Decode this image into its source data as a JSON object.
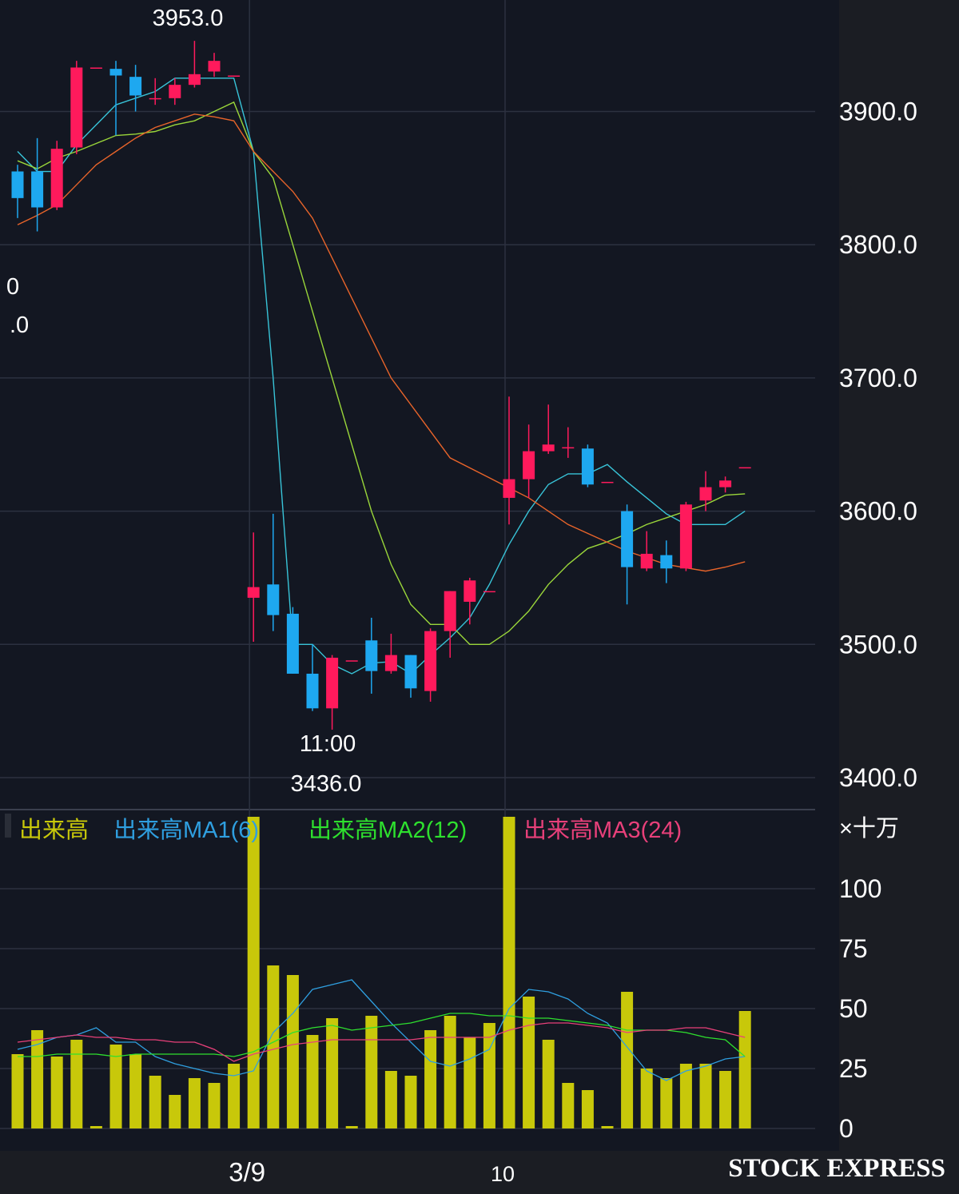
{
  "chart_data": {
    "type": "candlestick",
    "colors": {
      "background": "#1b1d23",
      "plot_area": "#131722",
      "grid": "#2c3140",
      "up": "#ff1a5c",
      "down": "#1ea8f0",
      "volume": "#c8c80a",
      "ma_short": "#38c4d8",
      "ma_mid": "#9ad63a",
      "ma_long": "#e8642a",
      "vol_ma1": "#2f9fe0",
      "vol_ma2": "#2ee02e",
      "vol_ma3": "#e8407a"
    },
    "price_axis": {
      "ylim": [
        3373,
        3986
      ],
      "ticks": [
        "3400.0",
        "3500.0",
        "3600.0",
        "3700.0",
        "3800.0",
        "3900.0"
      ]
    },
    "volume_axis": {
      "ylim": [
        0,
        140
      ],
      "unit": "×十万",
      "ticks": [
        "0",
        "25",
        "50",
        "75",
        "100"
      ]
    },
    "x_labels": [
      {
        "label": "3/9",
        "index": 12
      },
      {
        "label": "10",
        "index": 25
      }
    ],
    "annotations": {
      "high": {
        "value": "3953.0",
        "index": 9
      },
      "low_time": {
        "value": "11:00",
        "index": 16
      },
      "low": {
        "value": "3436.0",
        "index": 16
      },
      "clipped_1": "0",
      "clipped_2": ".0"
    },
    "candles": [
      {
        "o": 3855,
        "h": 3860,
        "l": 3820,
        "c": 3835
      },
      {
        "o": 3855,
        "h": 3880,
        "l": 3810,
        "c": 3828
      },
      {
        "o": 3828,
        "h": 3878,
        "l": 3826,
        "c": 3872
      },
      {
        "o": 3873,
        "h": 3938,
        "l": 3868,
        "c": 3933
      },
      {
        "o": 3933,
        "h": 3933,
        "l": 3933,
        "c": 3933
      },
      {
        "o": 3932,
        "h": 3938,
        "l": 3882,
        "c": 3927
      },
      {
        "o": 3926,
        "h": 3935,
        "l": 3900,
        "c": 3912
      },
      {
        "o": 3910,
        "h": 3925,
        "l": 3905,
        "c": 3910
      },
      {
        "o": 3910,
        "h": 3925,
        "l": 3905,
        "c": 3920
      },
      {
        "o": 3920,
        "h": 3953,
        "l": 3918,
        "c": 3928
      },
      {
        "o": 3930,
        "h": 3944,
        "l": 3926,
        "c": 3938
      },
      {
        "o": 3927,
        "h": 3927,
        "l": 3927,
        "c": 3927
      },
      {
        "o": 3535,
        "h": 3584,
        "l": 3502,
        "c": 3543
      },
      {
        "o": 3545,
        "h": 3598,
        "l": 3510,
        "c": 3522
      },
      {
        "o": 3523,
        "h": 3528,
        "l": 3478,
        "c": 3478
      },
      {
        "o": 3478,
        "h": 3500,
        "l": 3450,
        "c": 3452
      },
      {
        "o": 3452,
        "h": 3492,
        "l": 3436,
        "c": 3490
      },
      {
        "o": 3488,
        "h": 3488,
        "l": 3488,
        "c": 3488
      },
      {
        "o": 3503,
        "h": 3520,
        "l": 3463,
        "c": 3480
      },
      {
        "o": 3480,
        "h": 3508,
        "l": 3478,
        "c": 3492
      },
      {
        "o": 3492,
        "h": 3492,
        "l": 3460,
        "c": 3467
      },
      {
        "o": 3465,
        "h": 3512,
        "l": 3457,
        "c": 3510
      },
      {
        "o": 3510,
        "h": 3540,
        "l": 3490,
        "c": 3540
      },
      {
        "o": 3532,
        "h": 3550,
        "l": 3515,
        "c": 3548
      },
      {
        "o": 3540,
        "h": 3540,
        "l": 3540,
        "c": 3540
      },
      {
        "o": 3610,
        "h": 3686,
        "l": 3590,
        "c": 3624
      },
      {
        "o": 3624,
        "h": 3665,
        "l": 3610,
        "c": 3645
      },
      {
        "o": 3645,
        "h": 3680,
        "l": 3643,
        "c": 3650
      },
      {
        "o": 3648,
        "h": 3663,
        "l": 3640,
        "c": 3648
      },
      {
        "o": 3647,
        "h": 3650,
        "l": 3618,
        "c": 3620
      },
      {
        "o": 3622,
        "h": 3622,
        "l": 3622,
        "c": 3622
      },
      {
        "o": 3600,
        "h": 3605,
        "l": 3530,
        "c": 3558
      },
      {
        "o": 3557,
        "h": 3585,
        "l": 3555,
        "c": 3568
      },
      {
        "o": 3567,
        "h": 3578,
        "l": 3546,
        "c": 3557
      },
      {
        "o": 3557,
        "h": 3607,
        "l": 3555,
        "c": 3605
      },
      {
        "o": 3608,
        "h": 3630,
        "l": 3600,
        "c": 3618
      },
      {
        "o": 3618,
        "h": 3626,
        "l": 3614,
        "c": 3623
      },
      {
        "o": 3633,
        "h": 3633,
        "l": 3633,
        "c": 3633
      }
    ],
    "price_ma": [
      {
        "name": "",
        "color_key": "ma_short",
        "values": [
          3870,
          3855,
          3855,
          3875,
          3890,
          3905,
          3910,
          3915,
          3925,
          3925,
          3925,
          3925,
          3870,
          3700,
          3500,
          3500,
          3485,
          3478,
          3486,
          3487,
          3478,
          3492,
          3505,
          3520,
          3545,
          3575,
          3600,
          3620,
          3628,
          3628,
          3635,
          3622,
          3610,
          3598,
          3590,
          3590,
          3590,
          3600
        ]
      },
      {
        "name": "",
        "color_key": "ma_mid",
        "values": [
          3863,
          3857,
          3865,
          3870,
          3876,
          3882,
          3883,
          3885,
          3890,
          3893,
          3900,
          3907,
          3870,
          3850,
          3800,
          3750,
          3700,
          3650,
          3600,
          3560,
          3530,
          3515,
          3515,
          3500,
          3500,
          3510,
          3525,
          3545,
          3560,
          3572,
          3577,
          3583,
          3590,
          3595,
          3600,
          3605,
          3612,
          3613
        ]
      },
      {
        "name": "",
        "color_key": "ma_long",
        "values": [
          3815,
          3822,
          3830,
          3845,
          3860,
          3870,
          3880,
          3888,
          3893,
          3898,
          3896,
          3893,
          3870,
          3840,
          3820,
          3790,
          3760,
          3730,
          3700,
          3680,
          3660,
          3640,
          3625,
          3610,
          3590,
          3570,
          3560,
          3555,
          3558,
          3562
        ]
      }
    ],
    "price_ma_x": [
      [
        0,
        1,
        2,
        3,
        4,
        5,
        6,
        7,
        8,
        9,
        10,
        11,
        12,
        13,
        14,
        15,
        16,
        17,
        18,
        19,
        20,
        21,
        22,
        23,
        24,
        25,
        26,
        27,
        28,
        29,
        30,
        31,
        32,
        33,
        34,
        35,
        36,
        37
      ],
      [
        0,
        1,
        2,
        3,
        4,
        5,
        6,
        7,
        8,
        9,
        10,
        11,
        12,
        13,
        14,
        15,
        16,
        17,
        18,
        19,
        20,
        21,
        22,
        23,
        24,
        25,
        26,
        27,
        28,
        29,
        30,
        31,
        32,
        33,
        34,
        35,
        36,
        37
      ],
      [
        0,
        1,
        2,
        3,
        4,
        5,
        6,
        7,
        8,
        9,
        10,
        11,
        12,
        14,
        15,
        16,
        17,
        18,
        19,
        20,
        21,
        22,
        24,
        26,
        28,
        31,
        33,
        35,
        36,
        37
      ]
    ],
    "volume": {
      "name": "出来高",
      "values": [
        31,
        41,
        30,
        37,
        1,
        35,
        31,
        22,
        14,
        21,
        19,
        27,
        130,
        68,
        64,
        39,
        46,
        1,
        47,
        24,
        22,
        41,
        47,
        38,
        44,
        130,
        55,
        37,
        19,
        16,
        1,
        57,
        25,
        21,
        27,
        27,
        24,
        49
      ]
    },
    "volume_ma": [
      {
        "name": "出来高MA1(6)",
        "color_key": "vol_ma1",
        "values": [
          33,
          35,
          38,
          39,
          42,
          36,
          36,
          30,
          27,
          25,
          23,
          22,
          24,
          40,
          48,
          58,
          60,
          62,
          53,
          44,
          36,
          28,
          26,
          29,
          33,
          50,
          58,
          57,
          54,
          48,
          44,
          34,
          24,
          20,
          24,
          26,
          29,
          30
        ]
      },
      {
        "name": "出来高MA2(12)",
        "color_key": "vol_ma2",
        "values": [
          30,
          30,
          31,
          31,
          31,
          30,
          31,
          31,
          31,
          31,
          31,
          30,
          32,
          36,
          40,
          42,
          43,
          41,
          42,
          43,
          44,
          46,
          48,
          48,
          47,
          47,
          46,
          46,
          45,
          44,
          43,
          41,
          41,
          41,
          40,
          38,
          37,
          30
        ]
      },
      {
        "name": "出来高MA3(24)",
        "color_key": "vol_ma3",
        "values": [
          36,
          37,
          38,
          39,
          38,
          38,
          37,
          37,
          36,
          36,
          33,
          28,
          31,
          33,
          35,
          36,
          37,
          37,
          37,
          37,
          37,
          38,
          38,
          38,
          38,
          41,
          43,
          44,
          44,
          43,
          42,
          40,
          41,
          41,
          42,
          42,
          40,
          38
        ]
      }
    ],
    "brand": "STOCK EXPRESS"
  }
}
